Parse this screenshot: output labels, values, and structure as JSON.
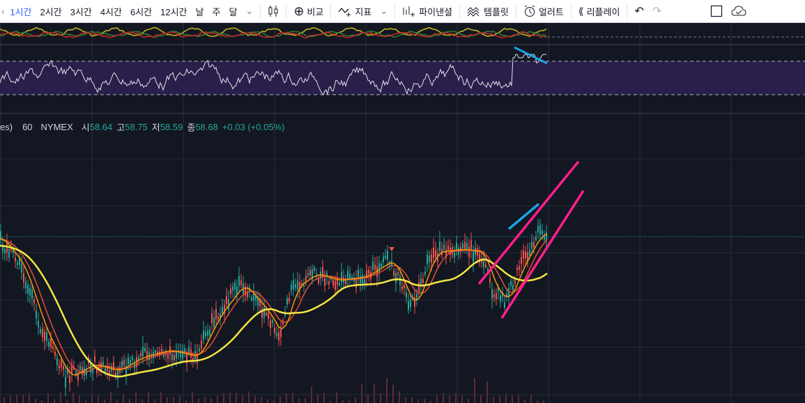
{
  "toolbar": {
    "intervals": [
      "1시간",
      "2시간",
      "3시간",
      "4시간",
      "6시간",
      "12시간",
      "날",
      "주",
      "달"
    ],
    "compare": "비교",
    "indicators": "지표",
    "pinescript": "파이낸셜",
    "templates": "템플릿",
    "alert": "얼러트",
    "replay": "리플레이"
  },
  "legend": {
    "symbol_tail": "es)",
    "interval": "60",
    "exchange": "NYMEX",
    "open_label": "시",
    "open": "58.64",
    "high_label": "고",
    "high": "58.75",
    "low_label": "저",
    "low": "58.59",
    "close_label": "종",
    "close": "58.68",
    "change": "+0.03 (+0.05%)"
  },
  "colors": {
    "background": "#131722",
    "up": "#26a69a",
    "rsi_band": "#2a1f4a",
    "trendline_blue": "#1fa2e8",
    "channel_magenta": "#ff1f8a",
    "ma_yellow": "#f5e642",
    "ma_orange": "#ff9800",
    "ma_red": "#e84d35"
  }
}
